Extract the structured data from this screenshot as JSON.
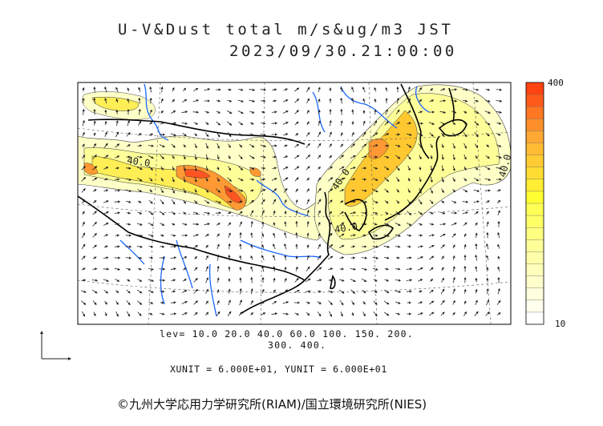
{
  "title": {
    "line1": "U-V&Dust total m/s&ug/m3 JST",
    "line2": "2023/09/30.21:00:00"
  },
  "map": {
    "contour_labels": [
      "40.0",
      "40.0",
      "40.0",
      "40.0"
    ],
    "dust_colors": {
      "ocean": "#ffffff",
      "light": "#ffffc8",
      "low": "#ffff99",
      "mid": "#ffee55",
      "high": "#ffc830",
      "higher": "#ff9933",
      "max": "#ff5522"
    },
    "coastline_color": "#000000",
    "river_color": "#1a66ff"
  },
  "levels": {
    "line1": "lev= 10.0 20.0 40.0 60.0 100. 150. 200.",
    "line2": "300. 400."
  },
  "units": "XUNIT = 6.000E+01, YUNIT = 6.000E+01",
  "colorbar": {
    "max_label": "400",
    "min_label": "10",
    "colors": [
      "#ff4411",
      "#ff5a1a",
      "#ff7722",
      "#ff8f2a",
      "#ffa833",
      "#ffbb33",
      "#ffcc33",
      "#ffdd33",
      "#ffee33",
      "#ffff33",
      "#ffff55",
      "#ffff66",
      "#ffff80",
      "#ffff99",
      "#ffffaa",
      "#ffffbb",
      "#ffffcc",
      "#ffffdd",
      "#ffffee",
      "#ffffff"
    ]
  },
  "copyright": "©九州大学応用力学研究所(RIAM)/国立環境研究所(NIES)"
}
